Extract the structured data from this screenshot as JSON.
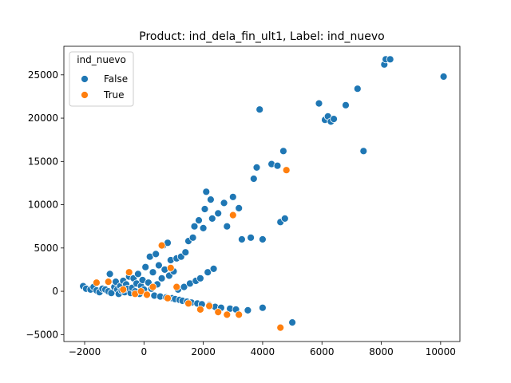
{
  "chart_data": {
    "type": "scatter",
    "title": "Product: ind_dela_fin_ult1, Label: ind_nuevo",
    "xlabel": "",
    "ylabel": "",
    "xlim": [
      -2700,
      10650
    ],
    "ylim": [
      -5800,
      28300
    ],
    "x_ticks": [
      -2000,
      0,
      2000,
      4000,
      6000,
      8000,
      10000
    ],
    "y_ticks": [
      -5000,
      0,
      5000,
      10000,
      15000,
      20000,
      25000
    ],
    "grid": false,
    "legend": {
      "title": "ind_nuevo",
      "placement": "top-left",
      "entries": [
        {
          "label": "False",
          "color": "#1f77b4"
        },
        {
          "label": "True",
          "color": "#ff7f0e"
        }
      ]
    },
    "series": [
      {
        "name": "False",
        "color": "#1f77b4",
        "points": [
          [
            -2050,
            600
          ],
          [
            -1950,
            300
          ],
          [
            -1800,
            200
          ],
          [
            -1700,
            500
          ],
          [
            -1600,
            100
          ],
          [
            -1500,
            -100
          ],
          [
            -1400,
            300
          ],
          [
            -1300,
            200
          ],
          [
            -1200,
            0
          ],
          [
            -1150,
            2000
          ],
          [
            -1100,
            -200
          ],
          [
            -1000,
            500
          ],
          [
            -950,
            1100
          ],
          [
            -900,
            200
          ],
          [
            -850,
            -300
          ],
          [
            -800,
            600
          ],
          [
            -750,
            100
          ],
          [
            -700,
            1200
          ],
          [
            -650,
            -100
          ],
          [
            -600,
            800
          ],
          [
            -550,
            300
          ],
          [
            -500,
            1700
          ],
          [
            -450,
            -200
          ],
          [
            -400,
            400
          ],
          [
            -350,
            1500
          ],
          [
            -300,
            0
          ],
          [
            -250,
            900
          ],
          [
            -200,
            2000
          ],
          [
            -150,
            -300
          ],
          [
            -100,
            600
          ],
          [
            -50,
            1300
          ],
          [
            0,
            200
          ],
          [
            50,
            2800
          ],
          [
            100,
            -400
          ],
          [
            150,
            1000
          ],
          [
            200,
            4000
          ],
          [
            250,
            300
          ],
          [
            300,
            2200
          ],
          [
            350,
            -500
          ],
          [
            400,
            4300
          ],
          [
            450,
            800
          ],
          [
            500,
            3000
          ],
          [
            550,
            -600
          ],
          [
            600,
            1500
          ],
          [
            650,
            5300
          ],
          [
            700,
            2500
          ],
          [
            750,
            -700
          ],
          [
            800,
            5600
          ],
          [
            850,
            1800
          ],
          [
            900,
            3600
          ],
          [
            950,
            -800
          ],
          [
            1000,
            2300
          ],
          [
            1050,
            -900
          ],
          [
            1100,
            3800
          ],
          [
            1150,
            200
          ],
          [
            1200,
            -1000
          ],
          [
            1250,
            4000
          ],
          [
            1300,
            -1100
          ],
          [
            1350,
            500
          ],
          [
            1400,
            4500
          ],
          [
            1450,
            -1200
          ],
          [
            1500,
            5800
          ],
          [
            1550,
            900
          ],
          [
            1600,
            -1300
          ],
          [
            1650,
            6200
          ],
          [
            1700,
            7500
          ],
          [
            1750,
            1200
          ],
          [
            1800,
            -1400
          ],
          [
            1850,
            8200
          ],
          [
            1900,
            1500
          ],
          [
            1950,
            -1500
          ],
          [
            2000,
            7300
          ],
          [
            2050,
            9500
          ],
          [
            2100,
            11500
          ],
          [
            2150,
            2200
          ],
          [
            2200,
            -1600
          ],
          [
            2250,
            10600
          ],
          [
            2300,
            8400
          ],
          [
            2350,
            2600
          ],
          [
            2400,
            -1800
          ],
          [
            2500,
            9000
          ],
          [
            2600,
            -1900
          ],
          [
            2700,
            10200
          ],
          [
            2800,
            7500
          ],
          [
            2900,
            -2000
          ],
          [
            3000,
            10900
          ],
          [
            3100,
            -2100
          ],
          [
            3200,
            9600
          ],
          [
            3300,
            6000
          ],
          [
            3500,
            -2200
          ],
          [
            3600,
            6200
          ],
          [
            3700,
            13000
          ],
          [
            3800,
            14300
          ],
          [
            3900,
            21000
          ],
          [
            4000,
            -1900
          ],
          [
            4000,
            6000
          ],
          [
            4300,
            14700
          ],
          [
            4500,
            14500
          ],
          [
            4600,
            8000
          ],
          [
            4700,
            16200
          ],
          [
            4750,
            8400
          ],
          [
            5000,
            -3600
          ],
          [
            5900,
            21700
          ],
          [
            6100,
            19800
          ],
          [
            6200,
            20200
          ],
          [
            6300,
            19600
          ],
          [
            6400,
            19900
          ],
          [
            6800,
            21500
          ],
          [
            7200,
            23400
          ],
          [
            7400,
            16200
          ],
          [
            8100,
            26200
          ],
          [
            8150,
            26800
          ],
          [
            8300,
            26800
          ],
          [
            10100,
            24800
          ]
        ]
      },
      {
        "name": "True",
        "color": "#ff7f0e",
        "points": [
          [
            -1600,
            1000
          ],
          [
            -1200,
            1100
          ],
          [
            -700,
            200
          ],
          [
            -500,
            2200
          ],
          [
            -300,
            -300
          ],
          [
            -100,
            0
          ],
          [
            100,
            -400
          ],
          [
            300,
            500
          ],
          [
            600,
            5300
          ],
          [
            800,
            -800
          ],
          [
            900,
            2700
          ],
          [
            1100,
            500
          ],
          [
            1500,
            -1400
          ],
          [
            1900,
            -2100
          ],
          [
            2200,
            -1700
          ],
          [
            2500,
            -2400
          ],
          [
            2800,
            -2700
          ],
          [
            3000,
            8800
          ],
          [
            3200,
            -2700
          ],
          [
            4600,
            -4200
          ],
          [
            4800,
            14000
          ]
        ]
      }
    ]
  }
}
